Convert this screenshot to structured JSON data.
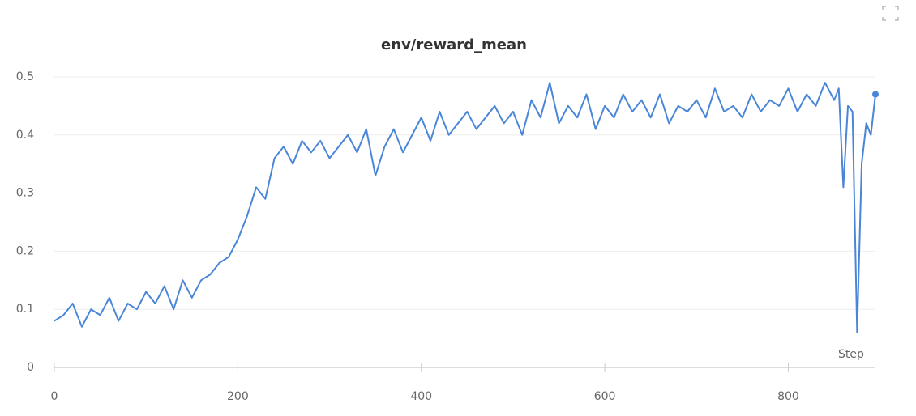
{
  "chart_data": {
    "type": "line",
    "title": "env/reward_mean",
    "x_label": "Step",
    "x": [
      0,
      10,
      20,
      30,
      40,
      50,
      60,
      70,
      80,
      90,
      100,
      110,
      120,
      130,
      140,
      150,
      160,
      170,
      180,
      190,
      200,
      210,
      220,
      230,
      240,
      250,
      260,
      270,
      280,
      290,
      300,
      310,
      320,
      330,
      340,
      350,
      360,
      370,
      380,
      390,
      400,
      410,
      420,
      430,
      440,
      450,
      460,
      470,
      480,
      490,
      500,
      510,
      520,
      530,
      540,
      550,
      560,
      570,
      580,
      590,
      600,
      610,
      620,
      630,
      640,
      650,
      660,
      670,
      680,
      690,
      700,
      710,
      720,
      730,
      740,
      750,
      760,
      770,
      780,
      790,
      800,
      810,
      820,
      830,
      840,
      850,
      855,
      860,
      865,
      870,
      875,
      880,
      885,
      890,
      895
    ],
    "series": [
      {
        "name": "env/reward_mean",
        "color": "#4a86d8",
        "values": [
          0.08,
          0.09,
          0.11,
          0.07,
          0.1,
          0.09,
          0.12,
          0.08,
          0.11,
          0.1,
          0.13,
          0.11,
          0.14,
          0.1,
          0.15,
          0.12,
          0.15,
          0.16,
          0.18,
          0.19,
          0.22,
          0.26,
          0.31,
          0.29,
          0.36,
          0.38,
          0.35,
          0.39,
          0.37,
          0.39,
          0.36,
          0.38,
          0.4,
          0.37,
          0.41,
          0.33,
          0.38,
          0.41,
          0.37,
          0.4,
          0.43,
          0.39,
          0.44,
          0.4,
          0.42,
          0.44,
          0.41,
          0.43,
          0.45,
          0.42,
          0.44,
          0.4,
          0.46,
          0.43,
          0.49,
          0.42,
          0.45,
          0.43,
          0.47,
          0.41,
          0.45,
          0.43,
          0.47,
          0.44,
          0.46,
          0.43,
          0.47,
          0.42,
          0.45,
          0.44,
          0.46,
          0.43,
          0.48,
          0.44,
          0.45,
          0.43,
          0.47,
          0.44,
          0.46,
          0.45,
          0.48,
          0.44,
          0.47,
          0.45,
          0.49,
          0.46,
          0.48,
          0.31,
          0.45,
          0.44,
          0.06,
          0.35,
          0.42,
          0.4,
          0.47
        ]
      }
    ],
    "xlim": [
      0,
      895
    ],
    "ylim": [
      0,
      0.52
    ],
    "xticks": [
      0,
      200,
      400,
      600,
      800
    ],
    "yticks": [
      0,
      0.1,
      0.2,
      0.3,
      0.4,
      0.5
    ],
    "grid": true
  }
}
